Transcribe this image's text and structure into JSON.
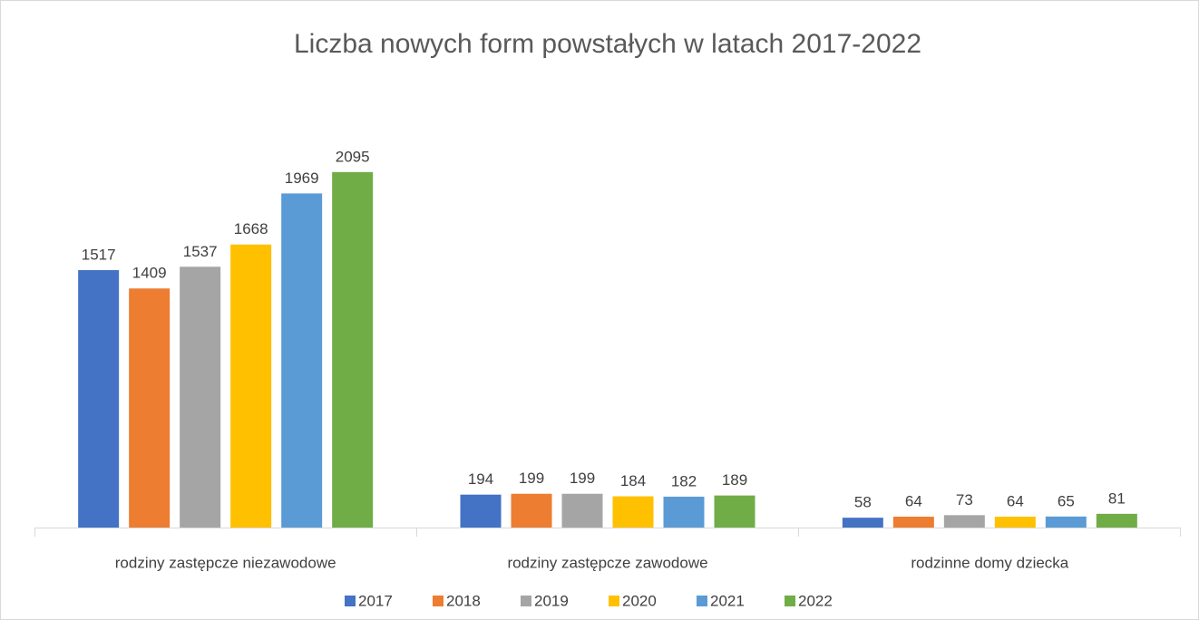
{
  "chart_data": {
    "type": "bar",
    "title": "Liczba nowych form powstałych w latach 2017-2022",
    "categories": [
      "rodziny zastępcze niezawodowe",
      "rodziny zastępcze zawodowe",
      "rodzinne domy dziecka"
    ],
    "series": [
      {
        "name": "2017",
        "color": "#4472c4",
        "values": [
          1517,
          194,
          58
        ]
      },
      {
        "name": "2018",
        "color": "#ed7d31",
        "values": [
          1409,
          199,
          64
        ]
      },
      {
        "name": "2019",
        "color": "#a5a5a5",
        "values": [
          1537,
          199,
          73
        ]
      },
      {
        "name": "2020",
        "color": "#ffc000",
        "values": [
          1668,
          184,
          64
        ]
      },
      {
        "name": "2021",
        "color": "#5b9bd5",
        "values": [
          1969,
          182,
          65
        ]
      },
      {
        "name": "2022",
        "color": "#70ad47",
        "values": [
          2095,
          189,
          81
        ]
      }
    ],
    "ylim": [
      0,
      2500
    ],
    "legend": "bottom"
  }
}
